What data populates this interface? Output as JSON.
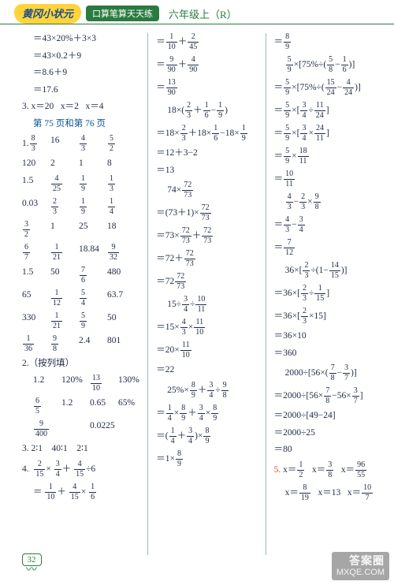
{
  "header": {
    "title": "黄冈小状元",
    "subtitle": "口算笔算天天练",
    "grade": "六年级上（R）"
  },
  "col1": {
    "eq1": "＝43×20%＋3×3",
    "eq2": "＝43×0.2＋9",
    "eq3": "＝8.6＋9",
    "eq4": "＝17.6",
    "p3label": "3.",
    "p3a": "x＝20",
    "p3b": "x＝2",
    "p3c": "x＝4",
    "pageref": "第 75 页和第 76 页",
    "g1": [
      "1.",
      "16",
      "",
      ""
    ],
    "g1f1n": "8",
    "g1f1d": "3",
    "g1f2n": "4",
    "g1f2d": "3",
    "g1f3n": "5",
    "g1f3d": "2",
    "g2": [
      "120",
      "2",
      "1",
      "8"
    ],
    "g3a": "1.5",
    "g3f1n": "4",
    "g3f1d": "25",
    "g3f2n": "1",
    "g3f2d": "9",
    "g3f3n": "1",
    "g3f3d": "3",
    "g4a": "0.03",
    "g4f1n": "2",
    "g4f1d": "3",
    "g4f2n": "1",
    "g4f2d": "9",
    "g4f3n": "1",
    "g4f3d": "4",
    "g5f1n": "3",
    "g5f1d": "2",
    "g5b": "1",
    "g5c": "25",
    "g5d": "18",
    "g6f1n": "6",
    "g6f1d": "7",
    "g6f2n": "1",
    "g6f2d": "21",
    "g6c": "18.84",
    "g6f3n": "9",
    "g6f3d": "32",
    "g7a": "1.5",
    "g7b": "50",
    "g7f1n": "7",
    "g7f1d": "6",
    "g7c": "480",
    "g8a": "65",
    "g8f1n": "1",
    "g8f1d": "12",
    "g8f2n": "5",
    "g8f2d": "4",
    "g8c": "63.7",
    "g9a": "330",
    "g9f1n": "1",
    "g9f1d": "21",
    "g9f2n": "5",
    "g9f2d": "9",
    "g9c": "50",
    "g10f1n": "1",
    "g10f1d": "36",
    "g10f2n": "9",
    "g10f2d": "8",
    "g10c": "2.4",
    "g10d": "801",
    "p2label": "2.（按列填）",
    "p2r1a": "1.2",
    "p2r1b": "120%",
    "p2r1fn": "13",
    "p2r1fd": "10",
    "p2r1c": "130%",
    "p2r2fn": "6",
    "p2r2fd": "5",
    "p2r2a": "1.2",
    "p2r2b": "0.65",
    "p2r2c": "65%",
    "p2r3fn": "9",
    "p2r3fd": "400",
    "p2r3a": "0.0225",
    "p3_2": "3.",
    "p3_2a": "2∶1",
    "p3_2b": "40∶1",
    "p3_2c": "2∶1",
    "p4": "4.",
    "p4f1n": "2",
    "p4f1d": "15",
    "p4f2n": "3",
    "p4f2d": "4",
    "p4f3n": "4",
    "p4f3d": "15",
    "p4bfn": "1",
    "p4bfd": "6",
    "p4l2f1n": "1",
    "p4l2f1d": "10",
    "p4l2f2n": "4",
    "p4l2f2d": "15",
    "p4l2f3n": "1",
    "p4l2f3d": "6"
  },
  "col2": {
    "l1f1n": "1",
    "l1f1d": "10",
    "l1f2n": "2",
    "l1f2d": "45",
    "l2f1n": "9",
    "l2f1d": "90",
    "l2f2n": "4",
    "l2f2d": "90",
    "l3fn": "13",
    "l3fd": "90",
    "l4a": "18×(",
    "l4f1n": "2",
    "l4f1d": "3",
    "l4f2n": "1",
    "l4f2d": "6",
    "l4f3n": "1",
    "l4f3d": "9",
    "l4b": ")",
    "l5a": "＝18×",
    "l5f1n": "2",
    "l5f1d": "3",
    "l5b": "＋18×",
    "l5f2n": "1",
    "l5f2d": "6",
    "l5c": "−18×",
    "l5f3n": "1",
    "l5f3d": "9",
    "l6": "＝12＋3−2",
    "l7": "＝13",
    "l8a": "74×",
    "l8fn": "72",
    "l8fd": "73",
    "l9a": "＝(73＋1)×",
    "l9fn": "72",
    "l9fd": "73",
    "l10a": "＝73×",
    "l10f1n": "72",
    "l10f1d": "73",
    "l10b": "＋",
    "l10f2n": "72",
    "l10f2d": "73",
    "l11a": "＝72＋",
    "l11fn": "72",
    "l11fd": "73",
    "l12a": "＝72",
    "l12fn": "72",
    "l12fd": "73",
    "l13a": "15÷",
    "l13f1n": "3",
    "l13f1d": "4",
    "l13b": "÷",
    "l13f2n": "10",
    "l13f2d": "11",
    "l14a": "＝15×",
    "l14f1n": "4",
    "l14f1d": "3",
    "l14b": "×",
    "l14f2n": "11",
    "l14f2d": "10",
    "l15a": "＝20×",
    "l15fn": "11",
    "l15fd": "10",
    "l16": "＝22",
    "l17a": "25%×",
    "l17f1n": "8",
    "l17f1d": "9",
    "l17b": "＋",
    "l17f2n": "3",
    "l17f2d": "4",
    "l17c": "÷",
    "l17f3n": "9",
    "l17f3d": "8",
    "l18a": "＝",
    "l18f1n": "1",
    "l18f1d": "4",
    "l18b": "×",
    "l18f2n": "8",
    "l18f2d": "9",
    "l18c": "＋",
    "l18f3n": "3",
    "l18f3d": "4",
    "l18d": "×",
    "l18f4n": "8",
    "l18f4d": "9",
    "l19a": "＝(",
    "l19f1n": "1",
    "l19f1d": "4",
    "l19b": "＋",
    "l19f2n": "3",
    "l19f2d": "4",
    "l19c": ")×",
    "l19f3n": "8",
    "l19f3d": "9",
    "l20a": "＝1×",
    "l20fn": "8",
    "l20fd": "9"
  },
  "col3": {
    "l1fn": "8",
    "l1fd": "9",
    "l2a": "",
    "l2f1n": "5",
    "l2f1d": "9",
    "l2b": "×[75%÷(",
    "l2f2n": "5",
    "l2f2d": "8",
    "l2c": "−",
    "l2f3n": "1",
    "l2f3d": "6",
    "l2d": ")]",
    "l3a": "＝",
    "l3f1n": "5",
    "l3f1d": "9",
    "l3b": "×[75%÷(",
    "l3f2n": "15",
    "l3f2d": "24",
    "l3c": "−",
    "l3f3n": "4",
    "l3f3d": "24",
    "l3d": ")]",
    "l4a": "＝",
    "l4f1n": "5",
    "l4f1d": "9",
    "l4b": "×[",
    "l4f2n": "3",
    "l4f2d": "4",
    "l4c": "÷",
    "l4f3n": "11",
    "l4f3d": "24",
    "l4d": "]",
    "l5a": "＝",
    "l5f1n": "5",
    "l5f1d": "9",
    "l5b": "×[",
    "l5f2n": "3",
    "l5f2d": "4",
    "l5c": "×",
    "l5f3n": "24",
    "l5f3d": "11",
    "l5d": "]",
    "l6a": "＝",
    "l6f1n": "5",
    "l6f1d": "9",
    "l6b": "×",
    "l6f2n": "18",
    "l6f2d": "11",
    "l7a": "＝",
    "l7fn": "10",
    "l7fd": "11",
    "l8f1n": "4",
    "l8f1d": "3",
    "l8a": "−",
    "l8f2n": "2",
    "l8f2d": "3",
    "l8b": "×",
    "l8f3n": "9",
    "l8f3d": "8",
    "l9a": "＝",
    "l9f1n": "4",
    "l9f1d": "3",
    "l9b": "−",
    "l9f2n": "3",
    "l9f2d": "4",
    "l10a": "＝",
    "l10fn": "7",
    "l10fd": "12",
    "l11a": "36×[",
    "l11f1n": "2",
    "l11f1d": "3",
    "l11b": "÷(1−",
    "l11f2n": "14",
    "l11f2d": "15",
    "l11c": ")]",
    "l12a": "＝36×[",
    "l12f1n": "2",
    "l12f1d": "3",
    "l12b": "÷",
    "l12f2n": "1",
    "l12f2d": "15",
    "l12c": "]",
    "l13a": "＝36×[",
    "l13f1n": "2",
    "l13f1d": "3",
    "l13b": "×15]",
    "l14": "＝36×10",
    "l15": "＝360",
    "l16a": "2000÷[56×(",
    "l16f1n": "7",
    "l16f1d": "8",
    "l16b": "−",
    "l16f2n": "3",
    "l16f2d": "7",
    "l16c": ")]",
    "l17a": "＝2000÷[56×",
    "l17f1n": "7",
    "l17f1d": "8",
    "l17b": "−56×",
    "l17f2n": "3",
    "l17f2d": "7",
    "l17c": "]",
    "l18": "＝2000÷[49−24]",
    "l19": "＝2000÷25",
    "l20": "＝80",
    "p5": "5.",
    "p5a": "x＝",
    "p5f1n": "1",
    "p5f1d": "2",
    "p5b": "x＝",
    "p5f2n": "3",
    "p5f2d": "8",
    "p5c": "x＝",
    "p5f3n": "96",
    "p5f3d": "55",
    "p5l2a": "x＝",
    "p5l2f1n": "8",
    "p5l2f1d": "19",
    "p5l2b": "x＝13",
    "p5l2c": "x＝",
    "p5l2f2n": "10",
    "p5l2f2d": "7"
  },
  "footer": {
    "page": "32"
  },
  "watermark": {
    "brand": "答案圈",
    "url": "MXQE.COM"
  }
}
